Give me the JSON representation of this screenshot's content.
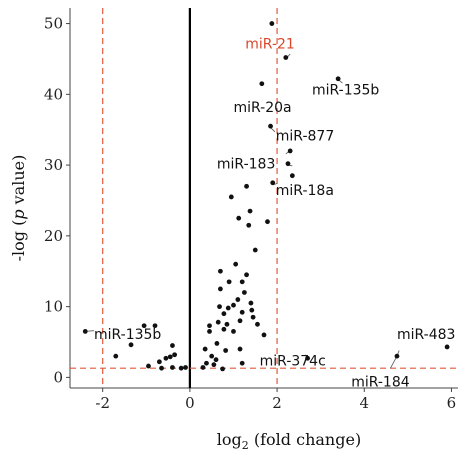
{
  "chart_data": {
    "type": "scatter",
    "title": "",
    "xlabel": "log",
    "xlabel_sub": "2",
    "xlabel_rest": " (fold change)",
    "ylabel_pre": "-log (",
    "ylabel_italic": "p",
    "ylabel_post": " value)",
    "xlim": [
      -2.75,
      6.15
    ],
    "ylim": [
      -1.5,
      52.2
    ],
    "x_ticks": [
      -2,
      0,
      2,
      4,
      6
    ],
    "y_ticks": [
      0,
      10,
      20,
      30,
      40,
      50
    ],
    "grid": false,
    "colors": {
      "point": "#111111",
      "threshold": "#e05a3c",
      "highlight": "#d9472b",
      "axis_zero": "#000000"
    },
    "thresholds": {
      "x": [
        -2,
        2
      ],
      "y": 1.3
    },
    "points": [
      [
        -2.4,
        6.5
      ],
      [
        -1.7,
        3.0
      ],
      [
        -1.35,
        4.6
      ],
      [
        -1.05,
        7.3
      ],
      [
        -0.8,
        7.3
      ],
      [
        -0.95,
        1.6
      ],
      [
        -0.7,
        2.2
      ],
      [
        -0.65,
        1.3
      ],
      [
        -0.55,
        2.7
      ],
      [
        -0.45,
        2.9
      ],
      [
        -0.4,
        1.4
      ],
      [
        -0.35,
        3.2
      ],
      [
        -0.2,
        1.3
      ],
      [
        -0.1,
        1.4
      ],
      [
        -0.4,
        4.5
      ],
      [
        0.3,
        1.4
      ],
      [
        0.38,
        2.0
      ],
      [
        0.35,
        4.0
      ],
      [
        0.45,
        6.5
      ],
      [
        0.45,
        7.3
      ],
      [
        0.5,
        3.0
      ],
      [
        0.55,
        1.8
      ],
      [
        0.6,
        2.5
      ],
      [
        0.62,
        4.8
      ],
      [
        0.65,
        7.8
      ],
      [
        0.68,
        10.0
      ],
      [
        0.7,
        12.5
      ],
      [
        0.7,
        15.0
      ],
      [
        0.78,
        6.8
      ],
      [
        0.78,
        9.0
      ],
      [
        0.82,
        3.8
      ],
      [
        0.85,
        7.5
      ],
      [
        0.88,
        9.8
      ],
      [
        0.9,
        13.5
      ],
      [
        0.95,
        25.5
      ],
      [
        1.0,
        6.5
      ],
      [
        1.0,
        10.2
      ],
      [
        1.05,
        16.0
      ],
      [
        1.1,
        11.0
      ],
      [
        1.12,
        22.5
      ],
      [
        1.15,
        4.0
      ],
      [
        1.15,
        8.0
      ],
      [
        1.2,
        9.2
      ],
      [
        1.2,
        13.5
      ],
      [
        1.25,
        12.0
      ],
      [
        1.3,
        27.0
      ],
      [
        1.35,
        21.5
      ],
      [
        1.38,
        23.5
      ],
      [
        1.3,
        14.5
      ],
      [
        1.4,
        10.5
      ],
      [
        1.42,
        9.5
      ],
      [
        1.45,
        8.5
      ],
      [
        1.5,
        18.0
      ],
      [
        1.55,
        7.5
      ],
      [
        1.2,
        2.0
      ],
      [
        0.75,
        1.2
      ],
      [
        1.65,
        41.5
      ],
      [
        1.7,
        6.0
      ],
      [
        1.78,
        22.0
      ],
      [
        1.88,
        50.0
      ],
      [
        1.85,
        35.5
      ],
      [
        1.9,
        27.5
      ],
      [
        2.2,
        45.2
      ],
      [
        2.3,
        32.0
      ],
      [
        2.35,
        28.5
      ],
      [
        2.25,
        30.2
      ],
      [
        2.7,
        2.7
      ],
      [
        3.4,
        42.2
      ],
      [
        4.75,
        3.0
      ],
      [
        5.9,
        4.3
      ]
    ],
    "labels": [
      {
        "text": "miR-21",
        "x": 1.27,
        "y": 46.5,
        "anchor": "start",
        "highlight": true
      },
      {
        "text": "miR-135b",
        "x": 2.8,
        "y": 40.0,
        "anchor": "start",
        "highlight": false
      },
      {
        "text": "miR-20a",
        "x": 1.0,
        "y": 37.5,
        "anchor": "start",
        "highlight": false
      },
      {
        "text": "miR-877",
        "x": 1.97,
        "y": 33.5,
        "anchor": "start",
        "highlight": false
      },
      {
        "text": "miR-183",
        "x": 0.62,
        "y": 29.5,
        "anchor": "start",
        "highlight": false
      },
      {
        "text": "miR-18a",
        "x": 1.97,
        "y": 25.8,
        "anchor": "start",
        "highlight": false
      },
      {
        "text": "miR-135b",
        "x": -2.2,
        "y": 5.4,
        "anchor": "start",
        "highlight": false
      },
      {
        "text": "miR-374c",
        "x": 1.6,
        "y": 1.7,
        "anchor": "start",
        "highlight": false
      },
      {
        "text": "miR-483",
        "x": 4.75,
        "y": 5.4,
        "anchor": "start",
        "highlight": false
      },
      {
        "text": "miR-184",
        "x": 3.7,
        "y": -1.3,
        "anchor": "start",
        "highlight": false
      }
    ],
    "leaders": [
      {
        "from": [
          1.9,
          27.2
        ],
        "to": [
          2.0,
          27.4
        ]
      },
      {
        "from": [
          2.2,
          45.0
        ],
        "to": [
          2.3,
          45.7
        ]
      },
      {
        "from": [
          3.4,
          42.1
        ],
        "to": [
          3.5,
          41.6
        ]
      },
      {
        "from": [
          1.85,
          35.3
        ],
        "to": [
          1.95,
          34.7
        ]
      },
      {
        "from": [
          2.3,
          32.0
        ],
        "to": [
          2.2,
          31.6
        ]
      },
      {
        "from": [
          2.25,
          30.0
        ],
        "to": [
          2.35,
          29.9
        ]
      },
      {
        "from": [
          -2.4,
          6.5
        ],
        "to": [
          -2.2,
          6.6
        ]
      },
      {
        "from": [
          2.7,
          2.7
        ],
        "to": [
          2.65,
          3.2
        ]
      },
      {
        "from": [
          4.75,
          3.0
        ],
        "to": [
          4.8,
          3.8
        ]
      },
      {
        "from": [
          4.75,
          3.0
        ],
        "to": [
          4.6,
          1.3
        ]
      }
    ]
  }
}
